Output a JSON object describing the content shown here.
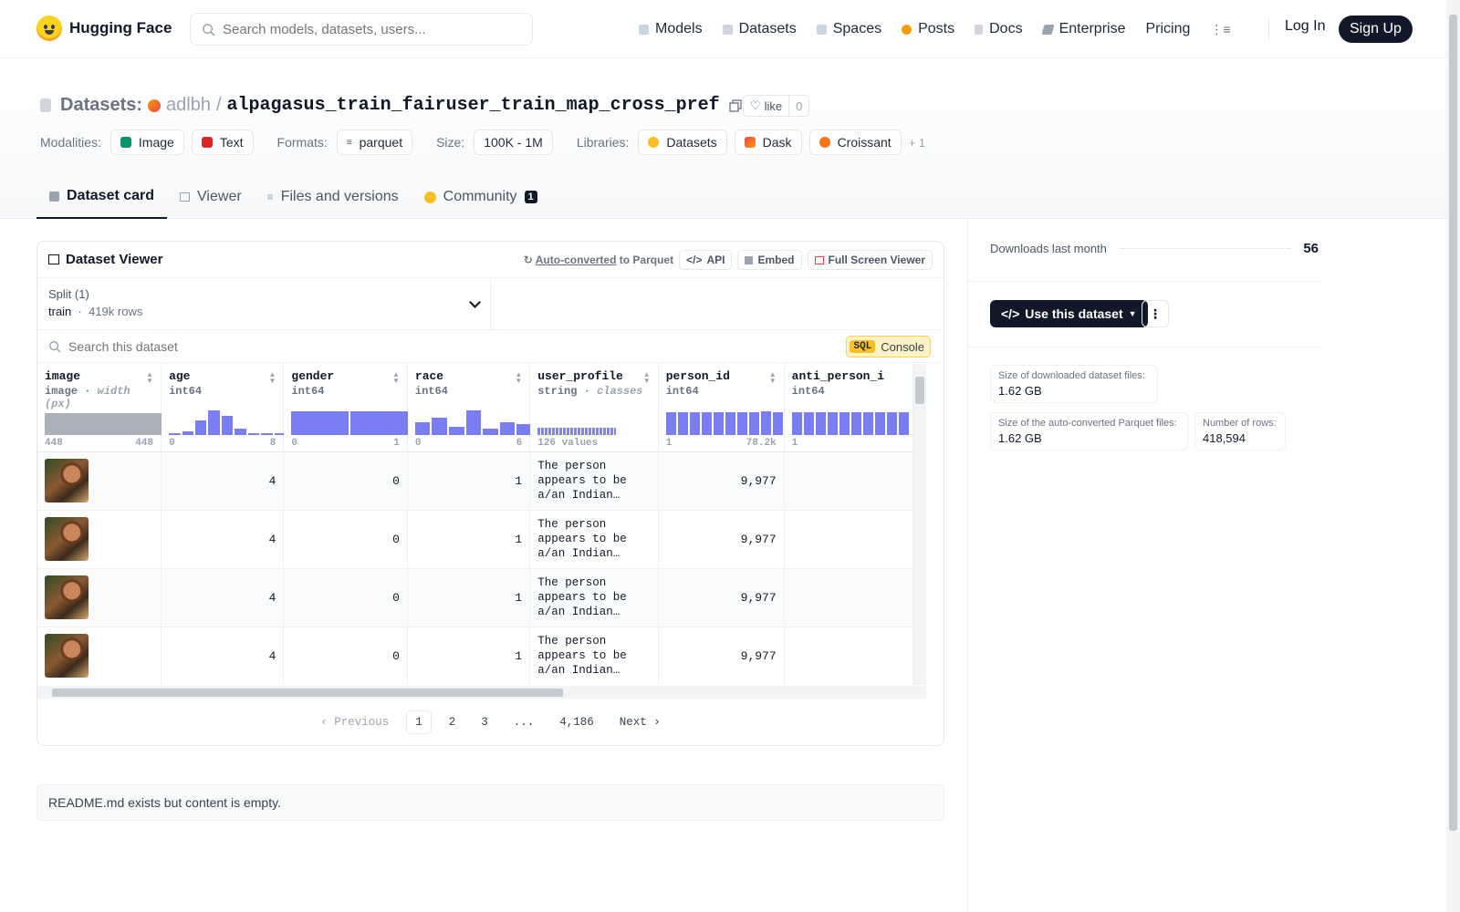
{
  "nav": {
    "brand": "Hugging Face",
    "search_placeholder": "Search models, datasets, users...",
    "links": [
      "Models",
      "Datasets",
      "Spaces",
      "Posts",
      "Docs",
      "Enterprise",
      "Pricing"
    ],
    "login": "Log In",
    "signup": "Sign Up"
  },
  "header": {
    "section": "Datasets:",
    "owner": "adlbh",
    "separator": "/",
    "dataset_name": "alpagasus_train_fairuser_train_map_cross_pref",
    "like_label": "like",
    "like_count": "0",
    "modalities_label": "Modalities:",
    "modalities": [
      "Image",
      "Text"
    ],
    "formats_label": "Formats:",
    "format": "parquet",
    "size_label": "Size:",
    "size": "100K - 1M",
    "libraries_label": "Libraries:",
    "libraries": [
      "Datasets",
      "Dask",
      "Croissant"
    ],
    "libraries_more": "+ 1"
  },
  "tabs": [
    {
      "label": "Dataset card",
      "active": true
    },
    {
      "label": "Viewer"
    },
    {
      "label": "Files and versions"
    },
    {
      "label": "Community",
      "badge": "1"
    }
  ],
  "viewer": {
    "title": "Dataset Viewer",
    "auto_converted": "Auto-converted",
    "to_parquet": "to Parquet",
    "api": "API",
    "embed": "Embed",
    "fullscreen": "Full Screen Viewer",
    "split_label": "Split (1)",
    "split_name": "train",
    "split_rows": "419k rows",
    "search_placeholder": "Search this dataset",
    "sql": "SQL",
    "console": "Console",
    "columns": [
      {
        "name": "image",
        "type": "image",
        "extra": "width (px)",
        "min": "448",
        "max": "448"
      },
      {
        "name": "age",
        "type": "int64",
        "min": "0",
        "max": "8"
      },
      {
        "name": "gender",
        "type": "int64",
        "min": "0",
        "max": "1"
      },
      {
        "name": "race",
        "type": "int64",
        "min": "0",
        "max": "6"
      },
      {
        "name": "user_profile",
        "type": "string",
        "extra": "classes",
        "min": "126 values"
      },
      {
        "name": "person_id",
        "type": "int64",
        "min": "1",
        "max": "78.2k"
      },
      {
        "name": "anti_person_i",
        "type": "int64",
        "min": "1"
      }
    ],
    "rows": [
      {
        "age": "4",
        "gender": "0",
        "race": "1",
        "user_profile": "The person appears to be a/an Indian…",
        "person_id": "9,977"
      },
      {
        "age": "4",
        "gender": "0",
        "race": "1",
        "user_profile": "The person appears to be a/an Indian…",
        "person_id": "9,977"
      },
      {
        "age": "4",
        "gender": "0",
        "race": "1",
        "user_profile": "The person appears to be a/an Indian…",
        "person_id": "9,977"
      },
      {
        "age": "4",
        "gender": "0",
        "race": "1",
        "user_profile": "The person appears to be a/an Indian…",
        "person_id": "9,977"
      }
    ],
    "pager": {
      "prev": "Previous",
      "pages": [
        "1",
        "2",
        "3",
        "...",
        "4,186"
      ],
      "next": "Next",
      "current": "1"
    }
  },
  "readme": "README.md exists but content is empty.",
  "sidebar": {
    "downloads_label": "Downloads last month",
    "downloads": "56",
    "use_button": "Use this dataset",
    "stats": [
      {
        "label": "Size of downloaded dataset files:",
        "value": "1.62 GB"
      },
      {
        "label": "Size of the auto-converted Parquet files:",
        "value": "1.62 GB"
      },
      {
        "label": "Number of rows:",
        "value": "418,594"
      }
    ]
  },
  "icons": {
    "search": "search-icon",
    "models": "cube-icon",
    "datasets": "database-icon",
    "spaces": "grid-icon",
    "posts": "posts-icon",
    "docs": "docs-icon",
    "enterprise": "enterprise-icon",
    "menu": "menu-icon",
    "copy": "copy-icon",
    "heart": "heart-icon",
    "chevron": "chevron-down-icon"
  },
  "colors": {
    "accent": "#6366f1",
    "dark": "#111827",
    "sql": "#fbbf24"
  }
}
